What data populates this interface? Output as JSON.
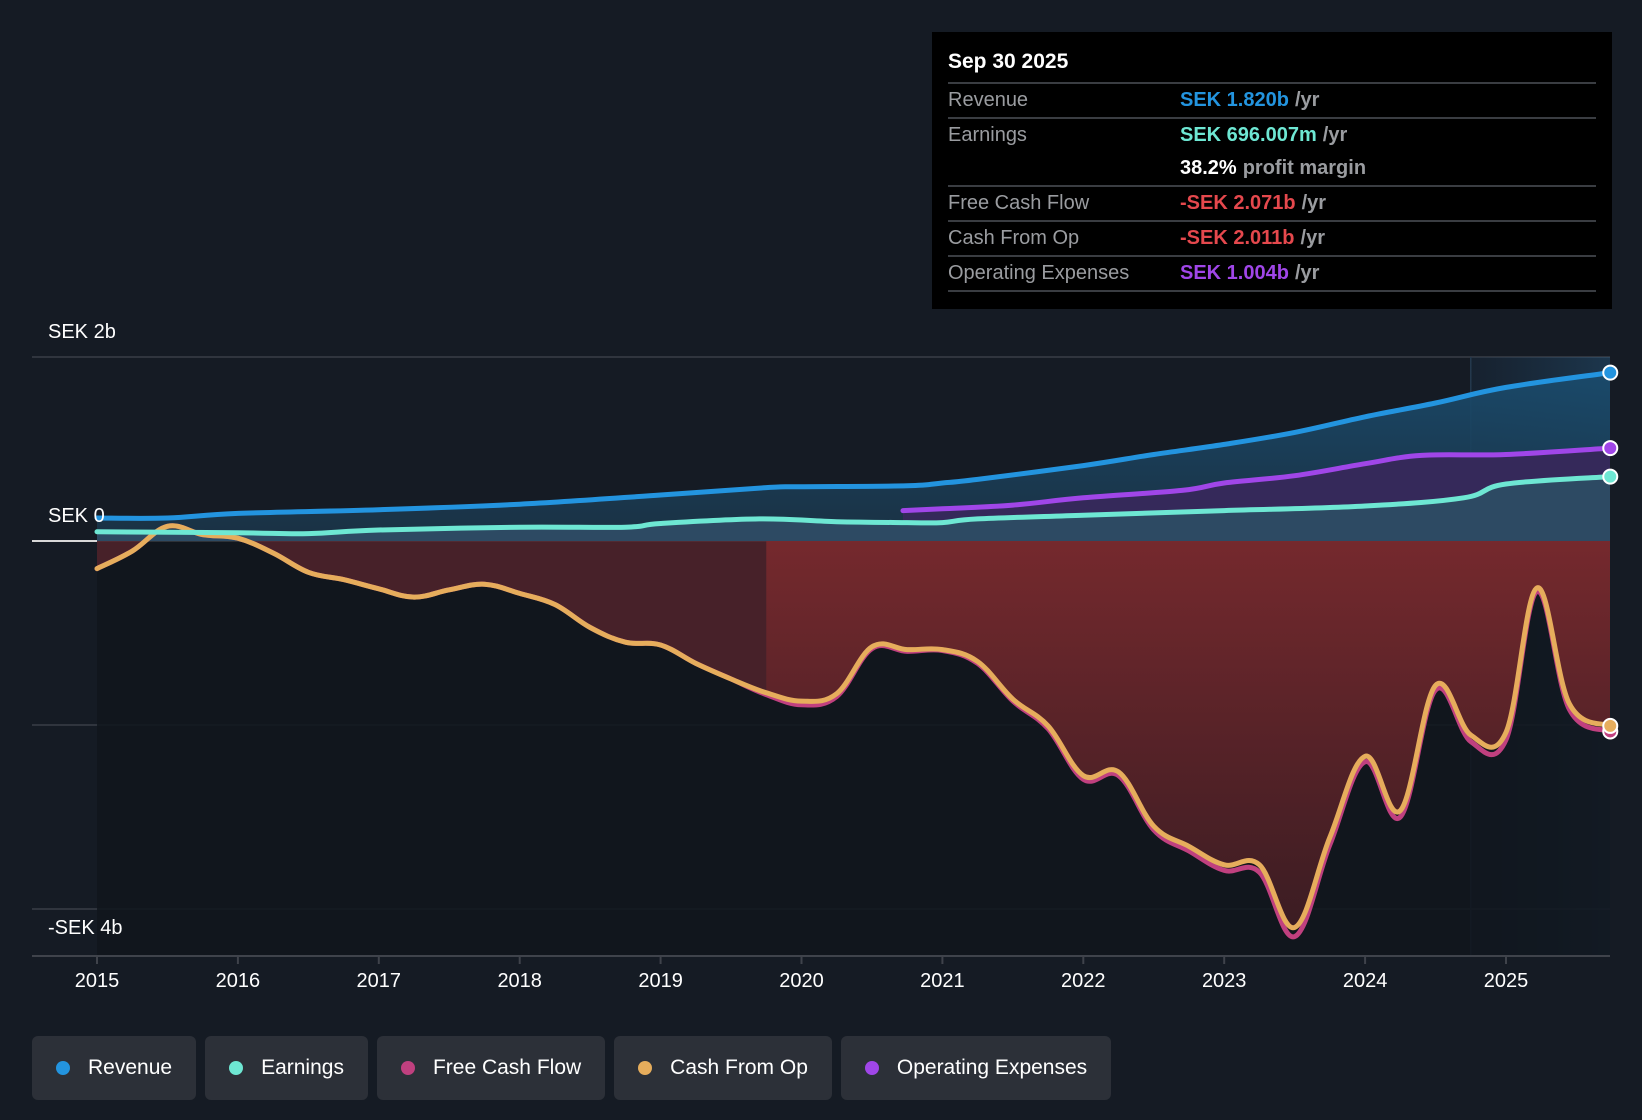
{
  "tooltip": {
    "date": "Sep 30 2025",
    "rows": [
      {
        "label": "Revenue",
        "value": "SEK 1.820b",
        "unit": "/yr",
        "color": "#2394df"
      },
      {
        "label": "Earnings",
        "value": "SEK 696.007m",
        "unit": "/yr",
        "color": "#6ee7d3"
      },
      {
        "label": "",
        "value": "38.2%",
        "unit": "profit margin",
        "color": "#ffffff"
      },
      {
        "label": "Free Cash Flow",
        "value": "-SEK 2.071b",
        "unit": "/yr",
        "color": "#e5484d"
      },
      {
        "label": "Cash From Op",
        "value": "-SEK 2.011b",
        "unit": "/yr",
        "color": "#e5484d"
      },
      {
        "label": "Operating Expenses",
        "value": "SEK 1.004b",
        "unit": "/yr",
        "color": "#a046e8"
      }
    ]
  },
  "legend": [
    {
      "label": "Revenue",
      "color": "#2394df"
    },
    {
      "label": "Earnings",
      "color": "#6ee7d3"
    },
    {
      "label": "Free Cash Flow",
      "color": "#c0407f"
    },
    {
      "label": "Cash From Op",
      "color": "#e6ad5c"
    },
    {
      "label": "Operating Expenses",
      "color": "#a046e8"
    }
  ],
  "chart_data": {
    "type": "line",
    "title": "",
    "xlabel": "",
    "ylabel": "",
    "currency": "SEK",
    "units": "billions",
    "xlim": [
      2014.98,
      2025.75
    ],
    "ylim": [
      -4.45,
      2.0
    ],
    "y_ticks": [
      {
        "value": 2,
        "label": "SEK 2b"
      },
      {
        "value": 0,
        "label": "SEK 0"
      },
      {
        "value": -2,
        "label": ""
      },
      {
        "value": -4,
        "label": "-SEK 4b"
      }
    ],
    "x_ticks": [
      2015,
      2016,
      2017,
      2018,
      2019,
      2020,
      2021,
      2022,
      2023,
      2024,
      2025
    ],
    "x_tick_labels": [
      "2015",
      "2016",
      "2017",
      "2018",
      "2019",
      "2020",
      "2021",
      "2022",
      "2023",
      "2024",
      "2025"
    ],
    "highlight_region_start": 2024.75,
    "grid": true,
    "legend_position": "bottom-left",
    "series": [
      {
        "name": "Revenue",
        "color": "#2394df",
        "x": [
          2015,
          2015.5,
          2016,
          2017,
          2018,
          2019,
          2019.75,
          2020,
          2020.75,
          2021,
          2021.25,
          2022,
          2022.5,
          2023,
          2023.5,
          2024,
          2024.5,
          2025,
          2025.74
        ],
        "y": [
          0.25,
          0.25,
          0.3,
          0.34,
          0.4,
          0.5,
          0.58,
          0.59,
          0.6,
          0.63,
          0.67,
          0.82,
          0.94,
          1.05,
          1.18,
          1.35,
          1.5,
          1.67,
          1.83
        ]
      },
      {
        "name": "Earnings",
        "color": "#6ee7d3",
        "x": [
          2015,
          2016,
          2016.5,
          2017,
          2018,
          2018.75,
          2019,
          2019.7,
          2020.25,
          2020.75,
          2021,
          2021.25,
          2022,
          2023,
          2024,
          2024.7,
          2025,
          2025.74
        ],
        "y": [
          0.1,
          0.09,
          0.08,
          0.12,
          0.15,
          0.15,
          0.19,
          0.24,
          0.21,
          0.2,
          0.2,
          0.24,
          0.28,
          0.33,
          0.38,
          0.47,
          0.62,
          0.7
        ]
      },
      {
        "name": "Free Cash Flow",
        "color": "#c0407f",
        "x": [
          2015,
          2015.25,
          2015.5,
          2015.75,
          2016,
          2016.25,
          2016.5,
          2016.75,
          2017,
          2017.25,
          2017.5,
          2017.75,
          2018,
          2018.25,
          2018.5,
          2018.75,
          2019,
          2019.25,
          2019.5,
          2019.75,
          2020,
          2020.25,
          2020.5,
          2020.75,
          2021,
          2021.25,
          2021.5,
          2021.75,
          2022,
          2022.25,
          2022.5,
          2022.75,
          2023,
          2023.25,
          2023.5,
          2023.75,
          2024,
          2024.25,
          2024.5,
          2024.75,
          2025,
          2025.22,
          2025.45,
          2025.74
        ],
        "y": [
          -0.3,
          -0.11,
          0.16,
          0.07,
          0.03,
          -0.13,
          -0.34,
          -0.42,
          -0.52,
          -0.61,
          -0.53,
          -0.47,
          -0.57,
          -0.69,
          -0.94,
          -1.1,
          -1.13,
          -1.33,
          -1.5,
          -1.67,
          -1.78,
          -1.69,
          -1.17,
          -1.2,
          -1.19,
          -1.33,
          -1.74,
          -2.04,
          -2.59,
          -2.55,
          -3.14,
          -3.37,
          -3.58,
          -3.6,
          -4.3,
          -3.3,
          -2.4,
          -3.0,
          -1.62,
          -2.18,
          -2.16,
          -0.55,
          -1.83,
          -2.07
        ]
      },
      {
        "name": "Cash From Op",
        "color": "#e6ad5c",
        "x": [
          2015,
          2015.25,
          2015.5,
          2015.75,
          2016,
          2016.25,
          2016.5,
          2016.75,
          2017,
          2017.25,
          2017.5,
          2017.75,
          2018,
          2018.25,
          2018.5,
          2018.75,
          2019,
          2019.25,
          2019.5,
          2019.75,
          2020,
          2020.25,
          2020.5,
          2020.75,
          2021,
          2021.25,
          2021.5,
          2021.75,
          2022,
          2022.25,
          2022.5,
          2022.75,
          2023,
          2023.25,
          2023.5,
          2023.75,
          2024,
          2024.25,
          2024.5,
          2024.75,
          2025,
          2025.22,
          2025.45,
          2025.74
        ],
        "y": [
          -0.3,
          -0.11,
          0.16,
          0.07,
          0.03,
          -0.13,
          -0.34,
          -0.42,
          -0.52,
          -0.61,
          -0.53,
          -0.47,
          -0.57,
          -0.69,
          -0.94,
          -1.1,
          -1.13,
          -1.33,
          -1.5,
          -1.65,
          -1.74,
          -1.66,
          -1.15,
          -1.18,
          -1.18,
          -1.31,
          -1.72,
          -2.01,
          -2.55,
          -2.51,
          -3.1,
          -3.32,
          -3.52,
          -3.52,
          -4.2,
          -3.22,
          -2.34,
          -2.93,
          -1.57,
          -2.11,
          -2.08,
          -0.51,
          -1.77,
          -2.01
        ]
      },
      {
        "name": "Operating Expenses",
        "color": "#a046e8",
        "x": [
          2020.72,
          2021,
          2021.5,
          2022,
          2022.7,
          2023,
          2023.5,
          2024,
          2024.4,
          2025,
          2025.74
        ],
        "y": [
          0.33,
          0.35,
          0.39,
          0.47,
          0.55,
          0.63,
          0.71,
          0.84,
          0.93,
          0.94,
          1.01
        ]
      }
    ]
  }
}
